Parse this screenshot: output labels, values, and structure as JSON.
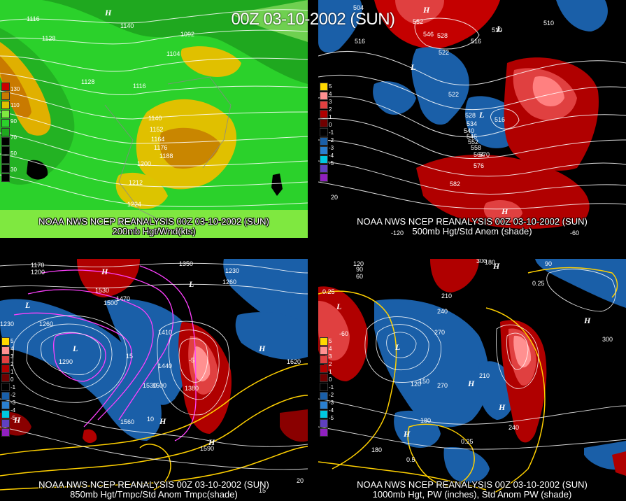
{
  "header": {
    "title": "00Z 03-10-2002 (SUN)"
  },
  "panels": [
    {
      "caption_line1": "NOAA NWS NCEP REANALYSIS 00Z 03-10-2002 (SUN)",
      "caption_line2": "200mb Hgt/Wnd(kts)",
      "legend_labels": [
        "130",
        "110",
        "90",
        "70",
        "50",
        "30"
      ],
      "contour_labels": [
        "1116",
        "1128",
        "1140",
        "1092",
        "1104",
        "1128",
        "1116",
        "1140",
        "1152",
        "1164",
        "1176",
        "1188",
        "1200",
        "1212",
        "1224"
      ]
    },
    {
      "caption_line1": "NOAA NWS NCEP REANALYSIS 00Z 03-10-2002 (SUN)",
      "caption_line2": "500mb Hgt/Std Anom (shade)",
      "legend_labels": [
        "5",
        "4",
        "3",
        "2",
        "1",
        "0",
        "-1",
        "-2",
        "-3",
        "-4",
        "-5"
      ],
      "contour_labels": [
        "504",
        "552",
        "546",
        "528",
        "516",
        "510",
        "510",
        "516",
        "522",
        "522",
        "528",
        "534",
        "540",
        "546",
        "552",
        "558",
        "564",
        "570",
        "576",
        "582",
        "516",
        "20"
      ],
      "axis_labels": [
        "-120",
        "-90",
        "-60"
      ]
    },
    {
      "caption_line1": "NOAA NWS NCEP REANALYSIS 00Z 03-10-2002 (SUN)",
      "caption_line2": "850mb Hgt/Tmpc/Std Anom Tmpc(shade)",
      "legend_labels": [
        "5",
        "4",
        "3",
        "2",
        "1",
        "0",
        "-1",
        "-2",
        "-3",
        "-4",
        "-5"
      ],
      "contour_labels": [
        "1170",
        "1200",
        "1530",
        "1350",
        "1230",
        "1260",
        "1260",
        "1470",
        "1500",
        "1410",
        "1440",
        "1530",
        "1500",
        "1380",
        "1620",
        "1560",
        "1590",
        "1230",
        "1290",
        "15",
        "20",
        "10",
        "-5",
        "15"
      ]
    },
    {
      "caption_line1": "NOAA NWS NCEP REANALYSIS 00Z 03-10-2002 (SUN)",
      "caption_line2": "1000mb Hgt, PW (inches), Std Anom PW (shade)",
      "legend_labels": [
        "5",
        "4",
        "3",
        "2",
        "1",
        "0",
        "-1",
        "-2",
        "-3",
        "-4",
        "-5"
      ],
      "contour_labels": [
        "120",
        "90",
        "60",
        "180",
        "90",
        "0.25",
        "210",
        "240",
        "270",
        "300",
        "270",
        "210",
        "180",
        "150",
        "120",
        "0.25",
        "0.5",
        "240",
        "0.25",
        "180",
        "300",
        "-60"
      ]
    }
  ]
}
